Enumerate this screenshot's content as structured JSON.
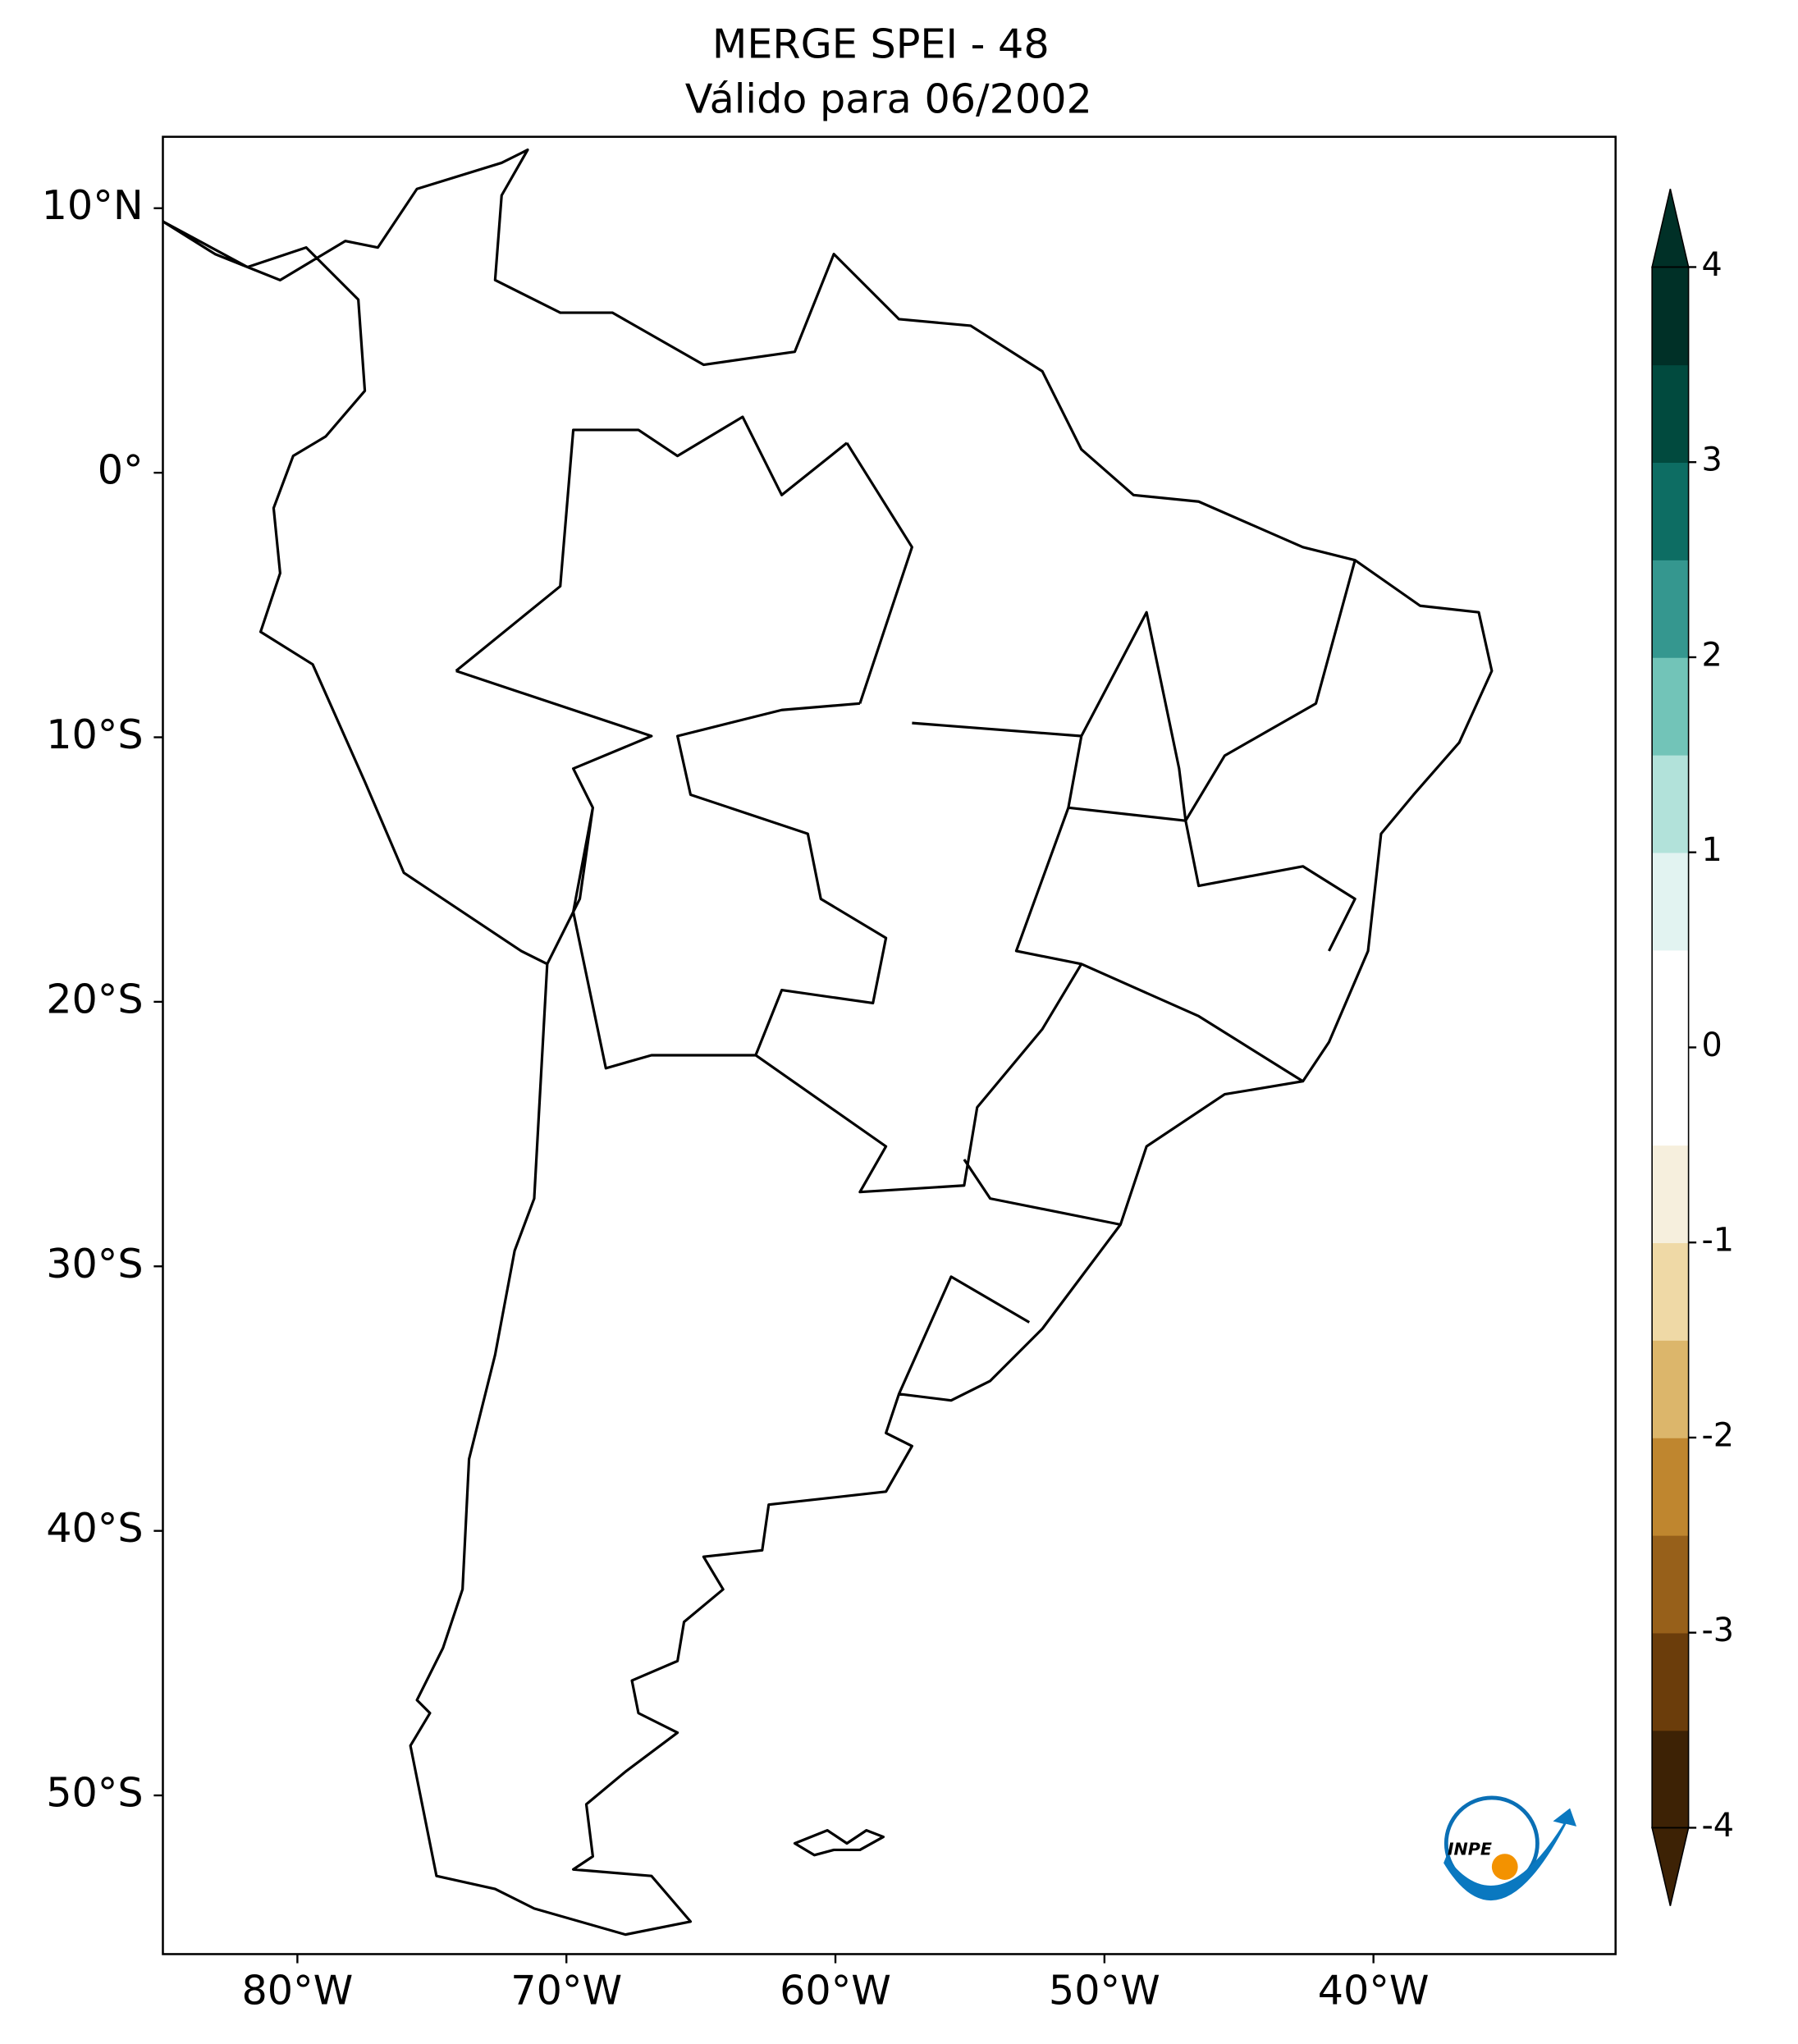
{
  "chart_data": {
    "type": "map",
    "title": "MERGE   SPEI - 48",
    "subtitle": "Válido para 06/2002",
    "xlim": [
      -85,
      -31
    ],
    "ylim": [
      -56,
      12.7
    ],
    "xticks": [
      {
        "value": -80,
        "label": "80°W"
      },
      {
        "value": -70,
        "label": "70°W"
      },
      {
        "value": -60,
        "label": "60°W"
      },
      {
        "value": -50,
        "label": "50°W"
      },
      {
        "value": -40,
        "label": "40°W"
      }
    ],
    "yticks": [
      {
        "value": 10,
        "label": "10°N"
      },
      {
        "value": 0,
        "label": "0°"
      },
      {
        "value": -10,
        "label": "10°S"
      },
      {
        "value": -20,
        "label": "20°S"
      },
      {
        "value": -30,
        "label": "30°S"
      },
      {
        "value": -40,
        "label": "40°S"
      },
      {
        "value": -50,
        "label": "50°S"
      }
    ],
    "colorbar": {
      "lim": [
        -4,
        4
      ],
      "ticks": [
        4,
        3,
        2,
        1,
        0,
        -1,
        -2,
        -3,
        -4
      ],
      "colors": [
        "#3d2205",
        "#6b3d0b",
        "#97601a",
        "#bf862f",
        "#dcb66b",
        "#efd9a6",
        "#f6efdd",
        "#ffffff",
        "#ffffff",
        "#e2f3f1",
        "#b2e2da",
        "#72c4b8",
        "#35978f",
        "#0d6d63",
        "#014a3e",
        "#003027"
      ]
    },
    "logo": "INPE"
  }
}
